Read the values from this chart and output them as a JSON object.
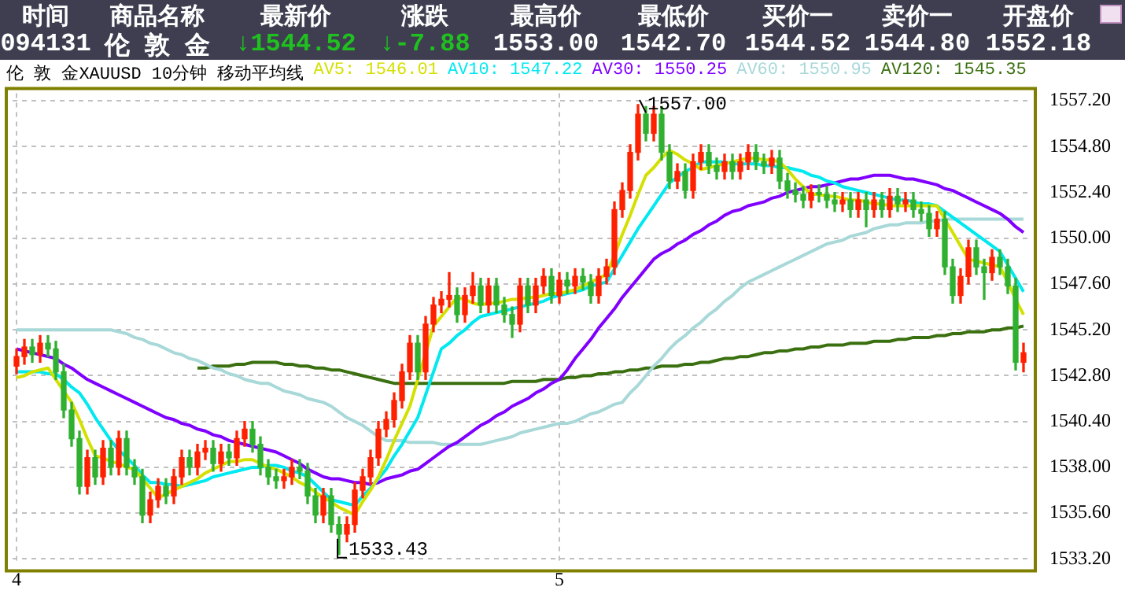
{
  "chart_data": [
    {
      "type": "other",
      "annotations": [
        "时间",
        "商品名称",
        "最新价",
        "涨跌",
        "最高价",
        "最低价",
        "买价一",
        "卖价一",
        "开盘价",
        "094131",
        "伦 敦 金",
        "↓1544.52",
        "↓-7.88",
        "1553.00",
        "1542.70",
        "1544.52",
        "1544.80",
        "1552.18"
      ],
      "colors": [
        "#ffffff",
        "#ffffff",
        "#ffffff",
        "#ffffff",
        "#ffffff",
        "#ffffff",
        "#ffffff",
        "#ffffff",
        "#ffffff",
        "#ffffff",
        "#ffffff",
        "#20c020",
        "#20c020",
        "#ffffff",
        "#ffffff",
        "#ffffff",
        "#ffffff",
        "#ffffff"
      ]
    },
    {
      "type": "candlestick",
      "title": "伦 敦 金XAUUSD 10分钟 移动平均线",
      "legend": "top",
      "grid": true,
      "marker": "none",
      "categories": [
        "4",
        null,
        null,
        null,
        null,
        null,
        null,
        null,
        null,
        null,
        null,
        null,
        null,
        null,
        null,
        null,
        null,
        null,
        null,
        null,
        null,
        null,
        null,
        null,
        null,
        null,
        null,
        null,
        null,
        null,
        null,
        null,
        null,
        null,
        null,
        null,
        null,
        null,
        null,
        null,
        null,
        null,
        null,
        null,
        null,
        null,
        null,
        null,
        null,
        null,
        null,
        null,
        null,
        null,
        null,
        null,
        null,
        null,
        null,
        null,
        null,
        null,
        null,
        null,
        null,
        null,
        null,
        null,
        null,
        "5",
        null,
        null,
        null,
        null,
        null,
        null,
        null,
        null,
        null,
        null,
        null,
        null,
        null,
        null,
        null,
        null,
        null,
        null,
        null,
        null,
        null,
        null,
        null,
        null,
        null,
        null,
        null,
        null,
        null,
        null,
        null,
        null,
        null,
        null,
        null,
        null,
        null,
        null,
        null,
        null,
        null,
        null,
        null,
        null,
        null,
        null,
        null,
        null,
        null,
        null,
        null,
        null,
        null,
        null,
        null,
        null,
        null,
        null,
        null
      ],
      "ylim": [
        1532.9,
        1557.6
      ],
      "yticks": [
        {
          "value": 1533.2,
          "label": "1533.20"
        },
        {
          "value": 1535.6,
          "label": "1535.60"
        },
        {
          "value": 1538,
          "label": "1538.00"
        },
        {
          "value": 1540.4,
          "label": "1540.40"
        },
        {
          "value": 1542.8,
          "label": "1542.80"
        },
        {
          "value": 1545.2,
          "label": "1545.20"
        },
        {
          "value": 1547.6,
          "label": "1547.60"
        },
        {
          "value": 1550,
          "label": "1550.00"
        },
        {
          "value": 1552.4,
          "label": "1552.40"
        },
        {
          "value": 1554.8,
          "label": "1554.80"
        },
        {
          "value": 1557.2,
          "label": "1557.20"
        }
      ],
      "annotations": [
        "1557.00",
        "1533.43"
      ],
      "ohlc": [
        [
          1543.3,
          1544.2,
          1542.9,
          1543.8
        ],
        [
          1543.8,
          1544.7,
          1543.4,
          1544.3
        ],
        [
          1544.3,
          1544.7,
          1543.5,
          1543.9
        ],
        [
          1543.9,
          1544.9,
          1543.5,
          1544.5
        ],
        [
          1544.5,
          1544.9,
          1543.8,
          1544.2
        ],
        [
          1544.2,
          1544.6,
          1542.6,
          1543.0
        ],
        [
          1543.0,
          1543.4,
          1540.6,
          1541.0
        ],
        [
          1541.0,
          1541.4,
          1539.1,
          1539.5
        ],
        [
          1539.5,
          1539.9,
          1536.6,
          1537.0
        ],
        [
          1537.0,
          1538.9,
          1536.6,
          1538.5
        ],
        [
          1538.5,
          1538.9,
          1537.1,
          1537.5
        ],
        [
          1537.5,
          1539.4,
          1537.1,
          1539.0
        ],
        [
          1539.0,
          1539.4,
          1537.6,
          1538.0
        ],
        [
          1538.0,
          1539.9,
          1537.6,
          1539.5
        ],
        [
          1539.5,
          1539.9,
          1537.6,
          1538.0
        ],
        [
          1538.0,
          1538.4,
          1537.1,
          1537.5
        ],
        [
          1537.5,
          1537.9,
          1535.1,
          1535.5
        ],
        [
          1535.5,
          1536.7,
          1535.1,
          1536.3
        ],
        [
          1536.3,
          1537.4,
          1535.9,
          1537.0
        ],
        [
          1537.0,
          1537.4,
          1536.1,
          1536.5
        ],
        [
          1536.5,
          1537.9,
          1536.1,
          1537.5
        ],
        [
          1537.5,
          1538.9,
          1537.1,
          1538.5
        ],
        [
          1538.5,
          1538.9,
          1537.6,
          1538.0
        ],
        [
          1538.0,
          1539.2,
          1537.6,
          1538.8
        ],
        [
          1538.8,
          1539.4,
          1538.4,
          1539.0
        ],
        [
          1539.0,
          1539.4,
          1537.8,
          1538.2
        ],
        [
          1538.2,
          1539.2,
          1537.8,
          1538.8
        ],
        [
          1538.8,
          1539.2,
          1538.1,
          1538.5
        ],
        [
          1538.5,
          1539.9,
          1538.1,
          1539.5
        ],
        [
          1539.5,
          1540.4,
          1539.1,
          1540.0
        ],
        [
          1540.0,
          1540.4,
          1538.8,
          1539.2
        ],
        [
          1539.2,
          1539.6,
          1537.6,
          1538.0
        ],
        [
          1538.0,
          1538.4,
          1537.1,
          1537.5
        ],
        [
          1537.5,
          1537.9,
          1536.9,
          1537.3
        ],
        [
          1537.3,
          1537.9,
          1536.9,
          1537.5
        ],
        [
          1537.5,
          1538.4,
          1537.1,
          1538.0
        ],
        [
          1538.0,
          1538.4,
          1537.4,
          1537.8
        ],
        [
          1537.8,
          1538.2,
          1536.1,
          1536.5
        ],
        [
          1536.5,
          1536.9,
          1535.1,
          1535.5
        ],
        [
          1535.5,
          1536.9,
          1535.1,
          1536.5
        ],
        [
          1536.5,
          1536.9,
          1534.6,
          1535.0
        ],
        [
          1535.0,
          1535.4,
          1533.43,
          1534.5
        ],
        [
          1534.5,
          1535.4,
          1534.1,
          1535.0
        ],
        [
          1535.0,
          1537.2,
          1534.6,
          1536.8
        ],
        [
          1536.8,
          1537.9,
          1536.4,
          1537.5
        ],
        [
          1537.5,
          1538.9,
          1537.1,
          1538.5
        ],
        [
          1538.5,
          1540.4,
          1538.1,
          1540.0
        ],
        [
          1540.0,
          1540.9,
          1539.6,
          1540.5
        ],
        [
          1540.5,
          1541.9,
          1540.1,
          1541.5
        ],
        [
          1541.5,
          1543.4,
          1541.1,
          1543.0
        ],
        [
          1543.0,
          1544.9,
          1542.6,
          1544.5
        ],
        [
          1544.5,
          1544.9,
          1542.6,
          1543.0
        ],
        [
          1543.0,
          1545.9,
          1542.6,
          1545.5
        ],
        [
          1545.5,
          1546.9,
          1545.1,
          1546.5
        ],
        [
          1546.5,
          1547.2,
          1546.1,
          1546.8
        ],
        [
          1546.8,
          1548.2,
          1546.4,
          1547.0
        ],
        [
          1547.0,
          1547.4,
          1545.6,
          1546.0
        ],
        [
          1546.0,
          1547.4,
          1545.6,
          1547.0
        ],
        [
          1547.0,
          1548.2,
          1546.6,
          1547.5
        ],
        [
          1547.5,
          1547.9,
          1546.1,
          1546.5
        ],
        [
          1546.5,
          1547.9,
          1546.1,
          1547.5
        ],
        [
          1547.5,
          1547.9,
          1546.1,
          1546.5
        ],
        [
          1546.5,
          1546.9,
          1545.6,
          1546.0
        ],
        [
          1546.0,
          1546.4,
          1544.8,
          1545.5
        ],
        [
          1545.5,
          1547.9,
          1545.1,
          1547.5
        ],
        [
          1547.5,
          1547.9,
          1546.1,
          1546.5
        ],
        [
          1546.5,
          1547.9,
          1546.1,
          1547.5
        ],
        [
          1547.5,
          1548.4,
          1547.1,
          1548.0
        ],
        [
          1548.0,
          1548.4,
          1546.6,
          1547.0
        ],
        [
          1547.0,
          1548.2,
          1546.6,
          1547.8
        ],
        [
          1547.8,
          1548.2,
          1547.1,
          1547.5
        ],
        [
          1547.5,
          1548.4,
          1547.1,
          1548.0
        ],
        [
          1548.0,
          1548.4,
          1547.3,
          1547.7
        ],
        [
          1547.7,
          1548.1,
          1546.6,
          1547.0
        ],
        [
          1547.0,
          1548.4,
          1546.6,
          1548.0
        ],
        [
          1548.0,
          1548.9,
          1547.6,
          1548.5
        ],
        [
          1548.5,
          1551.9,
          1548.1,
          1551.5
        ],
        [
          1551.5,
          1552.9,
          1551.1,
          1552.5
        ],
        [
          1552.5,
          1554.9,
          1552.1,
          1554.5
        ],
        [
          1554.5,
          1557.0,
          1554.1,
          1556.5
        ],
        [
          1556.5,
          1556.9,
          1555.1,
          1555.5
        ],
        [
          1555.5,
          1556.9,
          1555.1,
          1556.5
        ],
        [
          1556.5,
          1556.9,
          1554.1,
          1554.5
        ],
        [
          1554.5,
          1554.9,
          1552.6,
          1553.0
        ],
        [
          1553.0,
          1553.9,
          1552.6,
          1553.5
        ],
        [
          1553.5,
          1553.9,
          1552.1,
          1552.5
        ],
        [
          1552.5,
          1554.4,
          1552.1,
          1554.0
        ],
        [
          1554.0,
          1554.9,
          1553.6,
          1554.5
        ],
        [
          1554.5,
          1554.9,
          1553.4,
          1553.8
        ],
        [
          1553.8,
          1554.2,
          1553.1,
          1553.5
        ],
        [
          1553.5,
          1554.4,
          1553.1,
          1554.0
        ],
        [
          1554.0,
          1554.4,
          1553.1,
          1553.5
        ],
        [
          1553.5,
          1554.4,
          1553.1,
          1554.0
        ],
        [
          1554.0,
          1554.9,
          1553.6,
          1554.5
        ],
        [
          1554.5,
          1554.9,
          1553.6,
          1554.0
        ],
        [
          1554.0,
          1554.4,
          1553.4,
          1553.8
        ],
        [
          1553.8,
          1554.6,
          1553.4,
          1554.2
        ],
        [
          1554.2,
          1554.6,
          1552.6,
          1553.0
        ],
        [
          1553.0,
          1553.4,
          1552.1,
          1552.5
        ],
        [
          1552.5,
          1552.9,
          1551.9,
          1552.3
        ],
        [
          1552.3,
          1552.7,
          1551.6,
          1552.0
        ],
        [
          1552.0,
          1552.8,
          1551.6,
          1552.4
        ],
        [
          1552.4,
          1552.8,
          1551.9,
          1552.3
        ],
        [
          1552.3,
          1552.7,
          1551.6,
          1552.0
        ],
        [
          1552.0,
          1552.4,
          1551.4,
          1551.8
        ],
        [
          1551.8,
          1552.4,
          1551.4,
          1552.0
        ],
        [
          1552.0,
          1552.4,
          1551.1,
          1551.5
        ],
        [
          1551.5,
          1552.4,
          1551.1,
          1552.0
        ],
        [
          1552.0,
          1552.4,
          1550.6,
          1551.5
        ],
        [
          1551.5,
          1552.4,
          1551.1,
          1552.0
        ],
        [
          1552.0,
          1552.4,
          1551.1,
          1551.5
        ],
        [
          1551.5,
          1552.6,
          1551.1,
          1552.2
        ],
        [
          1552.2,
          1552.6,
          1551.4,
          1551.8
        ],
        [
          1551.8,
          1552.4,
          1551.4,
          1552.0
        ],
        [
          1552.0,
          1552.4,
          1551.1,
          1551.5
        ],
        [
          1551.5,
          1551.9,
          1550.9,
          1551.3
        ],
        [
          1551.3,
          1551.7,
          1550.1,
          1550.5
        ],
        [
          1550.5,
          1551.4,
          1550.1,
          1551.0
        ],
        [
          1551.0,
          1551.4,
          1548.1,
          1548.5
        ],
        [
          1548.5,
          1548.9,
          1546.6,
          1547.0
        ],
        [
          1547.0,
          1548.4,
          1546.6,
          1548.0
        ],
        [
          1548.0,
          1549.9,
          1547.6,
          1549.5
        ],
        [
          1549.5,
          1549.9,
          1548.1,
          1548.5
        ],
        [
          1548.5,
          1548.9,
          1546.8,
          1548.2
        ],
        [
          1548.2,
          1549.4,
          1547.8,
          1549.0
        ],
        [
          1549.0,
          1549.4,
          1548.1,
          1548.5
        ],
        [
          1548.5,
          1548.9,
          1547.1,
          1547.5
        ],
        [
          1547.5,
          1547.9,
          1543.1,
          1543.5
        ],
        [
          1543.5,
          1544.5,
          1543.0,
          1544.0
        ]
      ],
      "series": [
        {
          "name": "AV5: 1546.01",
          "type": "line",
          "color": "#d4e000",
          "values": [
            1542.7,
            1542.8,
            1543.0,
            1543.1,
            1543.2,
            1542.6,
            1542.0,
            1541.4,
            1540.5,
            1539.5,
            1538.6,
            1538.5,
            1538.3,
            1538.2,
            1538.0,
            1537.9,
            1537.4,
            1536.9,
            1536.4,
            1536.6,
            1536.8,
            1537.0,
            1537.2,
            1537.4,
            1537.7,
            1537.9,
            1538.1,
            1538.3,
            1538.3,
            1538.4,
            1538.4,
            1538.2,
            1538.0,
            1537.9,
            1537.7,
            1537.5,
            1537.2,
            1537.0,
            1536.7,
            1536.4,
            1536.2,
            1535.9,
            1535.7,
            1535.5,
            1536.2,
            1536.8,
            1537.5,
            1538.4,
            1539.4,
            1540.3,
            1541.2,
            1542.6,
            1544.0,
            1545.4,
            1545.9,
            1546.4,
            1546.9,
            1546.8,
            1546.6,
            1546.5,
            1546.6,
            1546.6,
            1546.7,
            1546.8,
            1546.8,
            1546.9,
            1546.9,
            1547.0,
            1547.1,
            1547.1,
            1547.2,
            1547.3,
            1547.5,
            1547.7,
            1547.9,
            1548.1,
            1549.1,
            1550.2,
            1551.2,
            1552.3,
            1553.3,
            1553.7,
            1554.2,
            1554.6,
            1554.4,
            1554.1,
            1553.9,
            1553.6,
            1553.7,
            1553.8,
            1553.9,
            1554.0,
            1554.1,
            1554.2,
            1554.2,
            1554.1,
            1554.1,
            1554.0,
            1553.6,
            1553.1,
            1552.7,
            1552.3,
            1552.3,
            1552.2,
            1552.2,
            1552.1,
            1552.0,
            1552.0,
            1551.9,
            1551.8,
            1551.8,
            1551.7,
            1551.7,
            1551.7,
            1551.7,
            1551.7,
            1551.7,
            1551.7,
            1551.0,
            1550.3,
            1549.6,
            1548.9,
            1548.8,
            1548.7,
            1548.6,
            1548.5,
            1547.7,
            1546.8,
            1546.0
          ]
        },
        {
          "name": "AV10: 1547.22",
          "type": "line",
          "color": "#00e8f0",
          "values": [
            1543.0,
            1543.0,
            1543.0,
            1543.0,
            1542.9,
            1542.9,
            1542.6,
            1542.2,
            1541.9,
            1541.3,
            1540.6,
            1540.0,
            1539.4,
            1538.9,
            1538.5,
            1538.1,
            1537.6,
            1537.2,
            1537.2,
            1537.1,
            1537.1,
            1537.0,
            1537.1,
            1537.2,
            1537.3,
            1537.5,
            1537.6,
            1537.7,
            1537.8,
            1537.9,
            1538.0,
            1538.0,
            1538.1,
            1538.1,
            1538.0,
            1537.8,
            1537.7,
            1537.5,
            1537.1,
            1536.7,
            1536.3,
            1536.2,
            1536.1,
            1536.0,
            1536.5,
            1536.9,
            1537.4,
            1537.9,
            1538.6,
            1539.2,
            1539.9,
            1540.6,
            1541.8,
            1543.0,
            1544.2,
            1544.5,
            1544.9,
            1545.2,
            1545.6,
            1545.9,
            1546.0,
            1546.1,
            1546.2,
            1546.3,
            1546.4,
            1546.5,
            1546.6,
            1546.7,
            1546.9,
            1547.0,
            1547.1,
            1547.2,
            1547.3,
            1547.5,
            1547.6,
            1547.7,
            1548.4,
            1549.1,
            1549.8,
            1550.5,
            1551.1,
            1551.7,
            1552.3,
            1552.9,
            1553.2,
            1553.5,
            1553.7,
            1554.0,
            1554.0,
            1554.0,
            1554.0,
            1553.9,
            1553.9,
            1553.9,
            1553.9,
            1553.8,
            1553.8,
            1553.7,
            1553.7,
            1553.6,
            1553.5,
            1553.3,
            1553.2,
            1553.0,
            1552.9,
            1552.7,
            1552.6,
            1552.5,
            1552.4,
            1552.3,
            1552.2,
            1552.1,
            1552.0,
            1552.0,
            1551.9,
            1551.8,
            1551.8,
            1551.7,
            1551.4,
            1551.1,
            1550.8,
            1550.5,
            1550.2,
            1549.9,
            1549.6,
            1549.3,
            1548.6,
            1547.9,
            1547.2
          ]
        },
        {
          "name": "AV30: 1550.25",
          "type": "line",
          "color": "#8000ff",
          "values": [
            1544.2,
            1544.1,
            1544.0,
            1543.9,
            1543.8,
            1543.7,
            1543.4,
            1543.2,
            1542.9,
            1542.6,
            1542.4,
            1542.2,
            1542.0,
            1541.8,
            1541.6,
            1541.4,
            1541.2,
            1541.0,
            1540.8,
            1540.6,
            1540.5,
            1540.3,
            1540.2,
            1540.0,
            1539.9,
            1539.7,
            1539.6,
            1539.4,
            1539.3,
            1539.2,
            1539.1,
            1539.0,
            1538.9,
            1538.8,
            1538.6,
            1538.4,
            1538.2,
            1537.9,
            1537.7,
            1537.5,
            1537.4,
            1537.4,
            1537.3,
            1537.2,
            1537.2,
            1537.1,
            1537.2,
            1537.4,
            1537.5,
            1537.6,
            1537.8,
            1537.9,
            1538.2,
            1538.5,
            1538.8,
            1539.1,
            1539.3,
            1539.6,
            1539.9,
            1540.2,
            1540.4,
            1540.7,
            1540.9,
            1541.2,
            1541.4,
            1541.6,
            1541.9,
            1542.1,
            1542.4,
            1542.6,
            1543.1,
            1543.7,
            1544.2,
            1544.7,
            1545.3,
            1545.8,
            1546.3,
            1546.9,
            1547.4,
            1547.9,
            1548.4,
            1548.9,
            1549.2,
            1549.4,
            1549.7,
            1549.9,
            1550.2,
            1550.4,
            1550.7,
            1550.9,
            1551.2,
            1551.4,
            1551.5,
            1551.7,
            1551.8,
            1551.9,
            1552.1,
            1552.2,
            1552.4,
            1552.5,
            1552.6,
            1552.7,
            1552.7,
            1552.8,
            1552.9,
            1553.0,
            1553.1,
            1553.1,
            1553.2,
            1553.3,
            1553.3,
            1553.3,
            1553.2,
            1553.1,
            1553.1,
            1553.0,
            1552.9,
            1552.8,
            1552.6,
            1552.5,
            1552.3,
            1552.1,
            1551.9,
            1551.7,
            1551.5,
            1551.3,
            1551.0,
            1550.6,
            1550.3
          ]
        },
        {
          "name": "AV60: 1550.95",
          "type": "line",
          "color": "#a8d8d8",
          "values": [
            1545.2,
            1545.2,
            1545.2,
            1545.2,
            1545.2,
            1545.2,
            1545.2,
            1545.2,
            1545.2,
            1545.2,
            1545.2,
            1545.2,
            1545.2,
            1545.1,
            1545.0,
            1544.8,
            1544.7,
            1544.5,
            1544.4,
            1544.2,
            1544.0,
            1543.9,
            1543.7,
            1543.6,
            1543.4,
            1543.2,
            1543.1,
            1542.9,
            1542.8,
            1542.6,
            1542.5,
            1542.4,
            1542.4,
            1542.2,
            1542.0,
            1541.9,
            1541.8,
            1541.6,
            1541.5,
            1541.4,
            1541.2,
            1540.9,
            1540.6,
            1540.4,
            1540.2,
            1539.9,
            1539.6,
            1539.4,
            1539.4,
            1539.4,
            1539.3,
            1539.3,
            1539.3,
            1539.3,
            1539.2,
            1539.2,
            1539.2,
            1539.2,
            1539.2,
            1539.2,
            1539.3,
            1539.4,
            1539.5,
            1539.6,
            1539.8,
            1539.9,
            1540.0,
            1540.1,
            1540.2,
            1540.3,
            1540.3,
            1540.4,
            1540.6,
            1540.8,
            1540.9,
            1541.1,
            1541.3,
            1541.4,
            1541.9,
            1542.3,
            1542.8,
            1543.3,
            1543.7,
            1544.2,
            1544.6,
            1544.9,
            1545.3,
            1545.6,
            1546.0,
            1546.3,
            1546.7,
            1547.0,
            1547.4,
            1547.7,
            1547.9,
            1548.1,
            1548.3,
            1548.5,
            1548.7,
            1548.9,
            1549.1,
            1549.3,
            1549.5,
            1549.7,
            1549.8,
            1549.9,
            1550.1,
            1550.2,
            1550.3,
            1550.5,
            1550.6,
            1550.7,
            1550.7,
            1550.8,
            1550.8,
            1550.8,
            1550.9,
            1550.9,
            1551.0,
            1551.0,
            1551.0,
            1551.0,
            1551.0,
            1551.0,
            1551.0,
            1551.0,
            1551.0,
            1551.0,
            1551.0
          ]
        },
        {
          "name": "AV120: 1545.35",
          "type": "line",
          "color": "#3a7010",
          "values": [
            null,
            null,
            null,
            null,
            null,
            null,
            null,
            null,
            null,
            null,
            null,
            null,
            null,
            null,
            null,
            null,
            null,
            null,
            null,
            null,
            null,
            null,
            null,
            1543.2,
            1543.2,
            1543.3,
            1543.3,
            1543.3,
            1543.4,
            1543.4,
            1543.5,
            1543.5,
            1543.5,
            1543.5,
            1543.4,
            1543.4,
            1543.3,
            1543.3,
            1543.2,
            1543.2,
            1543.1,
            1543.1,
            1543.0,
            1542.9,
            1542.8,
            1542.7,
            1542.6,
            1542.5,
            1542.4,
            1542.4,
            1542.4,
            1542.4,
            1542.4,
            1542.4,
            1542.4,
            1542.4,
            1542.4,
            1542.4,
            1542.4,
            1542.4,
            1542.4,
            1542.4,
            1542.4,
            1542.5,
            1542.5,
            1542.5,
            1542.5,
            1542.6,
            1542.6,
            1542.6,
            1542.7,
            1542.7,
            1542.8,
            1542.8,
            1542.9,
            1542.9,
            1543.0,
            1543.0,
            1543.1,
            1543.1,
            1543.2,
            1543.2,
            1543.3,
            1543.3,
            1543.3,
            1543.4,
            1543.4,
            1543.5,
            1543.5,
            1543.6,
            1543.7,
            1543.7,
            1543.8,
            1543.8,
            1543.9,
            1544.0,
            1544.0,
            1544.1,
            1544.1,
            1544.2,
            1544.2,
            1544.3,
            1544.3,
            1544.4,
            1544.4,
            1544.4,
            1544.5,
            1544.5,
            1544.5,
            1544.6,
            1544.6,
            1544.6,
            1544.7,
            1544.7,
            1544.8,
            1544.8,
            1544.8,
            1544.9,
            1544.9,
            1545.0,
            1545.0,
            1545.1,
            1545.1,
            1545.1,
            1545.2,
            1545.2,
            1545.3,
            1545.3,
            1545.4
          ]
        }
      ]
    }
  ]
}
